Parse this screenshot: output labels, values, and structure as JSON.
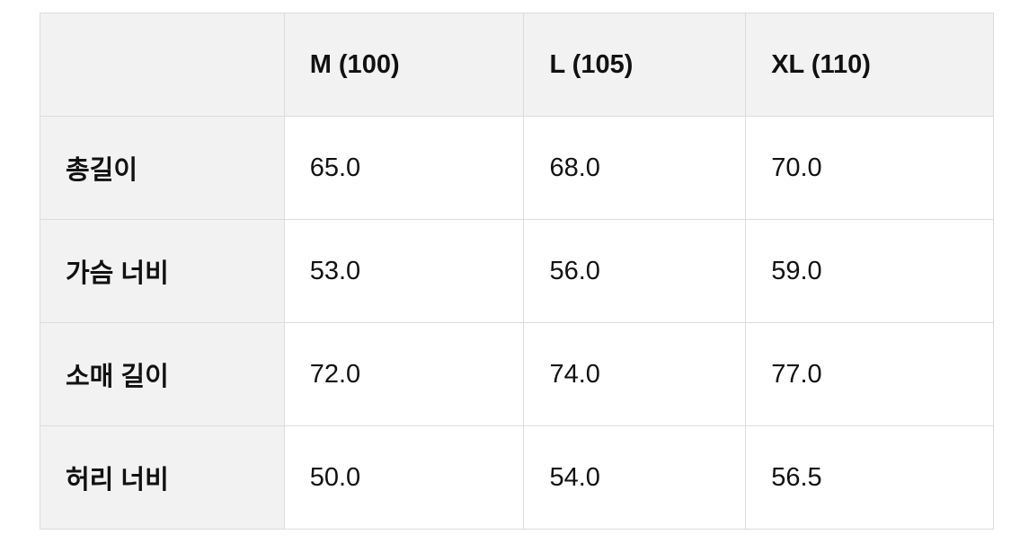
{
  "table": {
    "headers": [
      "",
      "M (100)",
      "L (105)",
      "XL (110)"
    ],
    "rows": [
      {
        "label": "총길이",
        "values": [
          "65.0",
          "68.0",
          "70.0"
        ]
      },
      {
        "label": "가슴 너비",
        "values": [
          "53.0",
          "56.0",
          "59.0"
        ]
      },
      {
        "label": "소매 길이",
        "values": [
          "72.0",
          "74.0",
          "77.0"
        ]
      },
      {
        "label": "허리 너비",
        "values": [
          "50.0",
          "54.0",
          "56.5"
        ]
      }
    ]
  },
  "colors": {
    "header_bg": "#f2f2f2",
    "border": "#dcdcdc",
    "text": "#111111"
  }
}
